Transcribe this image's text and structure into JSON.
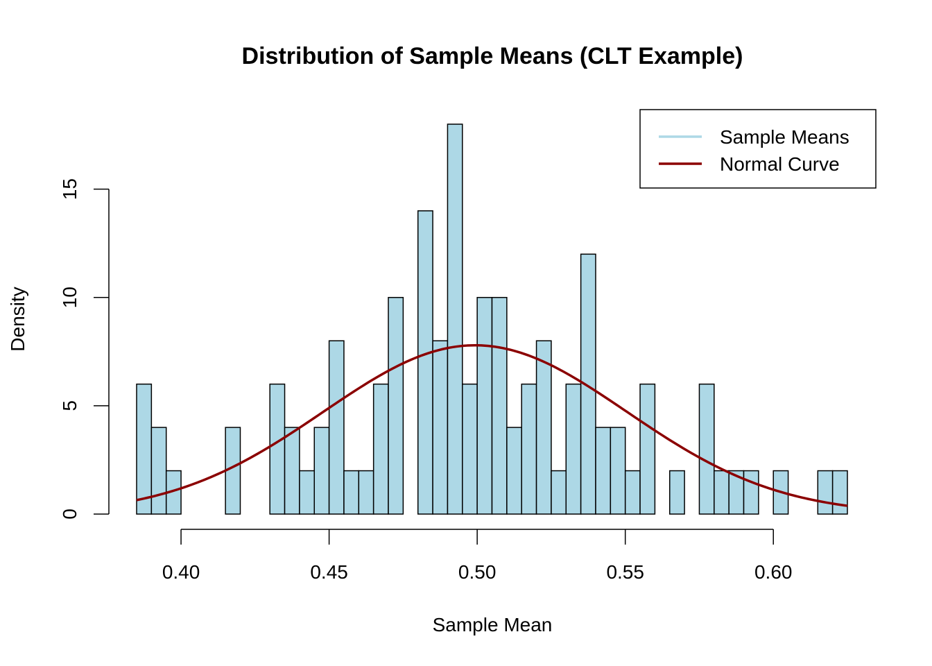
{
  "chart_data": {
    "type": "bar",
    "title": "Distribution of Sample Means (CLT Example)",
    "xlabel": "Sample Mean",
    "ylabel": "Density",
    "xlim": [
      0.385,
      0.625
    ],
    "ylim": [
      0,
      18
    ],
    "bin_width": 0.005,
    "x_ticks": [
      0.4,
      0.45,
      0.5,
      0.55,
      0.6
    ],
    "x_tick_labels": [
      "0.40",
      "0.45",
      "0.50",
      "0.55",
      "0.60"
    ],
    "y_ticks": [
      0,
      5,
      10,
      15
    ],
    "y_tick_labels": [
      "0",
      "5",
      "10",
      "15"
    ],
    "grid": false,
    "bins": [
      {
        "start": 0.385,
        "end": 0.39,
        "density": 6
      },
      {
        "start": 0.39,
        "end": 0.395,
        "density": 4
      },
      {
        "start": 0.395,
        "end": 0.4,
        "density": 2
      },
      {
        "start": 0.415,
        "end": 0.42,
        "density": 4
      },
      {
        "start": 0.43,
        "end": 0.435,
        "density": 6
      },
      {
        "start": 0.435,
        "end": 0.44,
        "density": 4
      },
      {
        "start": 0.44,
        "end": 0.445,
        "density": 2
      },
      {
        "start": 0.445,
        "end": 0.45,
        "density": 4
      },
      {
        "start": 0.45,
        "end": 0.455,
        "density": 8
      },
      {
        "start": 0.455,
        "end": 0.46,
        "density": 2
      },
      {
        "start": 0.46,
        "end": 0.465,
        "density": 2
      },
      {
        "start": 0.465,
        "end": 0.47,
        "density": 6
      },
      {
        "start": 0.47,
        "end": 0.475,
        "density": 10
      },
      {
        "start": 0.48,
        "end": 0.485,
        "density": 14
      },
      {
        "start": 0.485,
        "end": 0.49,
        "density": 8
      },
      {
        "start": 0.49,
        "end": 0.495,
        "density": 18
      },
      {
        "start": 0.495,
        "end": 0.5,
        "density": 6
      },
      {
        "start": 0.5,
        "end": 0.505,
        "density": 10
      },
      {
        "start": 0.505,
        "end": 0.51,
        "density": 10
      },
      {
        "start": 0.51,
        "end": 0.515,
        "density": 4
      },
      {
        "start": 0.515,
        "end": 0.52,
        "density": 6
      },
      {
        "start": 0.52,
        "end": 0.525,
        "density": 8
      },
      {
        "start": 0.525,
        "end": 0.53,
        "density": 2
      },
      {
        "start": 0.53,
        "end": 0.535,
        "density": 6
      },
      {
        "start": 0.535,
        "end": 0.54,
        "density": 12
      },
      {
        "start": 0.54,
        "end": 0.545,
        "density": 4
      },
      {
        "start": 0.545,
        "end": 0.55,
        "density": 4
      },
      {
        "start": 0.55,
        "end": 0.555,
        "density": 2
      },
      {
        "start": 0.555,
        "end": 0.56,
        "density": 6
      },
      {
        "start": 0.565,
        "end": 0.57,
        "density": 2
      },
      {
        "start": 0.575,
        "end": 0.58,
        "density": 6
      },
      {
        "start": 0.58,
        "end": 0.585,
        "density": 2
      },
      {
        "start": 0.585,
        "end": 0.59,
        "density": 2
      },
      {
        "start": 0.59,
        "end": 0.595,
        "density": 2
      },
      {
        "start": 0.6,
        "end": 0.605,
        "density": 2
      },
      {
        "start": 0.615,
        "end": 0.62,
        "density": 2
      },
      {
        "start": 0.62,
        "end": 0.625,
        "density": 2
      }
    ],
    "normal_curve": {
      "name": "Normal Curve",
      "mean": 0.4993,
      "sd": 0.0512,
      "x_range": [
        0.385,
        0.625
      ]
    },
    "legend": {
      "position": "top-right",
      "entries": [
        {
          "label": "Sample Means",
          "color": "#ADD8E6"
        },
        {
          "label": "Normal Curve",
          "color": "#8B0000"
        }
      ]
    },
    "colors": {
      "bar_fill": "#ADD8E6",
      "bar_stroke": "#000000",
      "curve": "#8B0000"
    }
  }
}
